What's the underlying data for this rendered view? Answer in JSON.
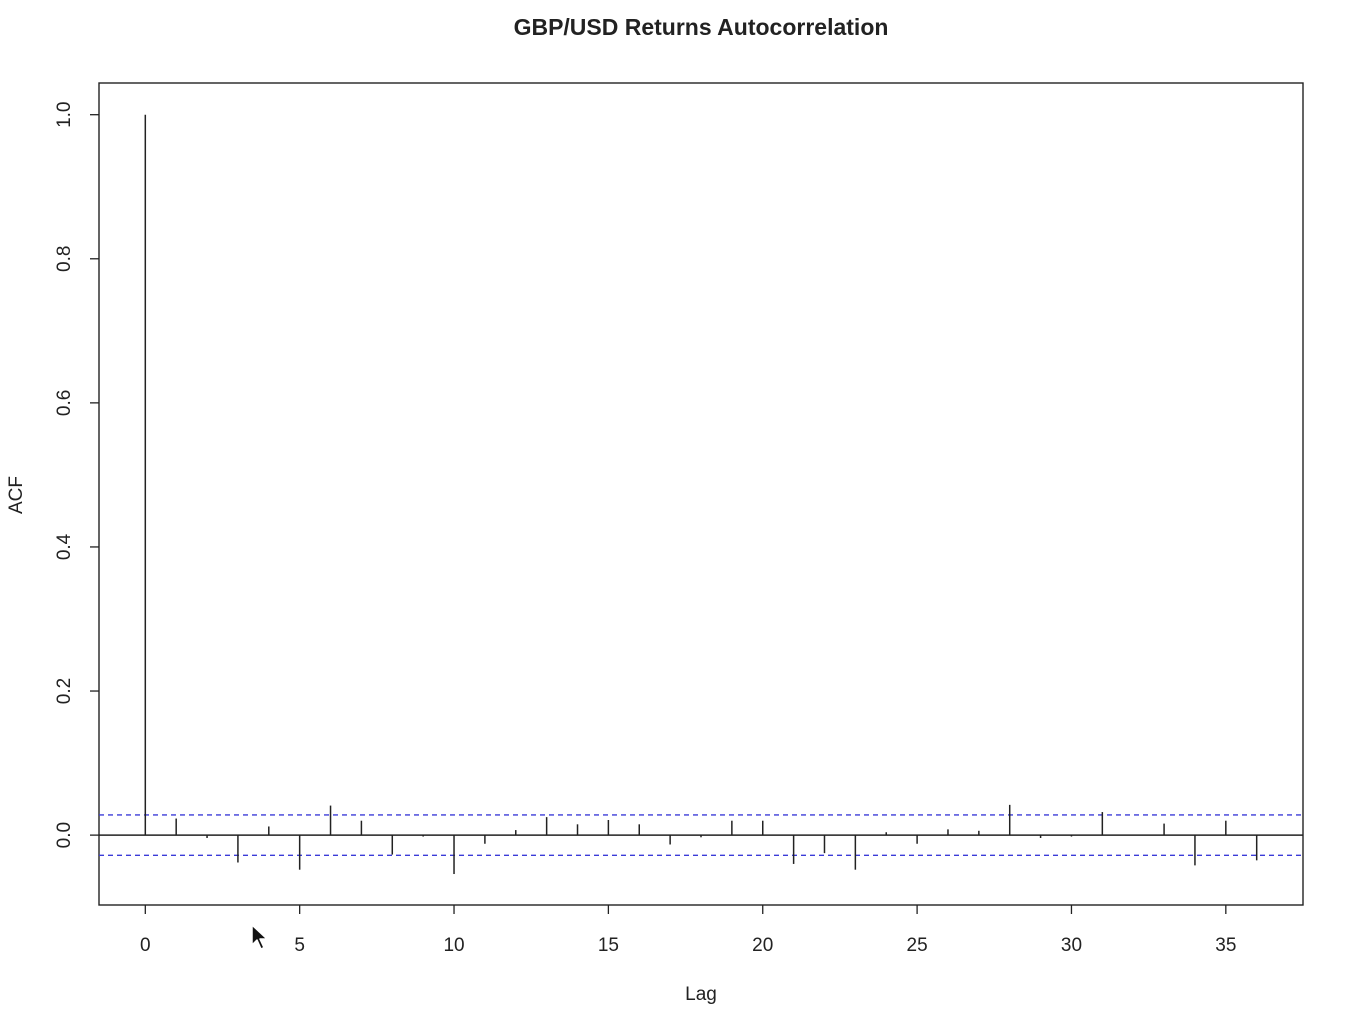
{
  "chart_data": {
    "type": "bar",
    "title": "GBP/USD Returns Autocorrelation",
    "xlabel": "Lag",
    "ylabel": "ACF",
    "xlim": [
      -1.5,
      37.5
    ],
    "ylim": [
      -0.097,
      1.044
    ],
    "xticks": [
      0,
      5,
      10,
      15,
      20,
      25,
      30,
      35
    ],
    "yticks": [
      0.0,
      0.2,
      0.4,
      0.6,
      0.8,
      1.0
    ],
    "xtick_labels": [
      "0",
      "5",
      "10",
      "15",
      "20",
      "25",
      "30",
      "35"
    ],
    "ytick_labels": [
      "0.0",
      "0.2",
      "0.4",
      "0.6",
      "0.8",
      "1.0"
    ],
    "lags": [
      0,
      1,
      2,
      3,
      4,
      5,
      6,
      7,
      8,
      9,
      10,
      11,
      12,
      13,
      14,
      15,
      16,
      17,
      18,
      19,
      20,
      21,
      22,
      23,
      24,
      25,
      26,
      27,
      28,
      29,
      30,
      31,
      32,
      33,
      34,
      35,
      36
    ],
    "acf": [
      1.0,
      0.023,
      -0.004,
      -0.038,
      0.012,
      -0.048,
      0.041,
      0.02,
      -0.027,
      -0.002,
      -0.054,
      -0.012,
      0.007,
      0.025,
      0.015,
      0.021,
      0.015,
      -0.013,
      -0.003,
      0.02,
      0.02,
      -0.04,
      -0.025,
      -0.048,
      0.004,
      -0.012,
      0.008,
      0.006,
      0.042,
      -0.004,
      -0.002,
      0.032,
      0.0,
      0.016,
      -0.042,
      0.02,
      -0.035
    ],
    "confidence_bounds": [
      0.028,
      -0.028
    ],
    "grid": false,
    "legend": "none",
    "colors": {
      "bars": "#222222",
      "frame": "#222222",
      "confidence": "#3b3bd8",
      "zero_line": "#222222"
    }
  },
  "pointer": {
    "icon": "mouse-pointer-icon"
  }
}
